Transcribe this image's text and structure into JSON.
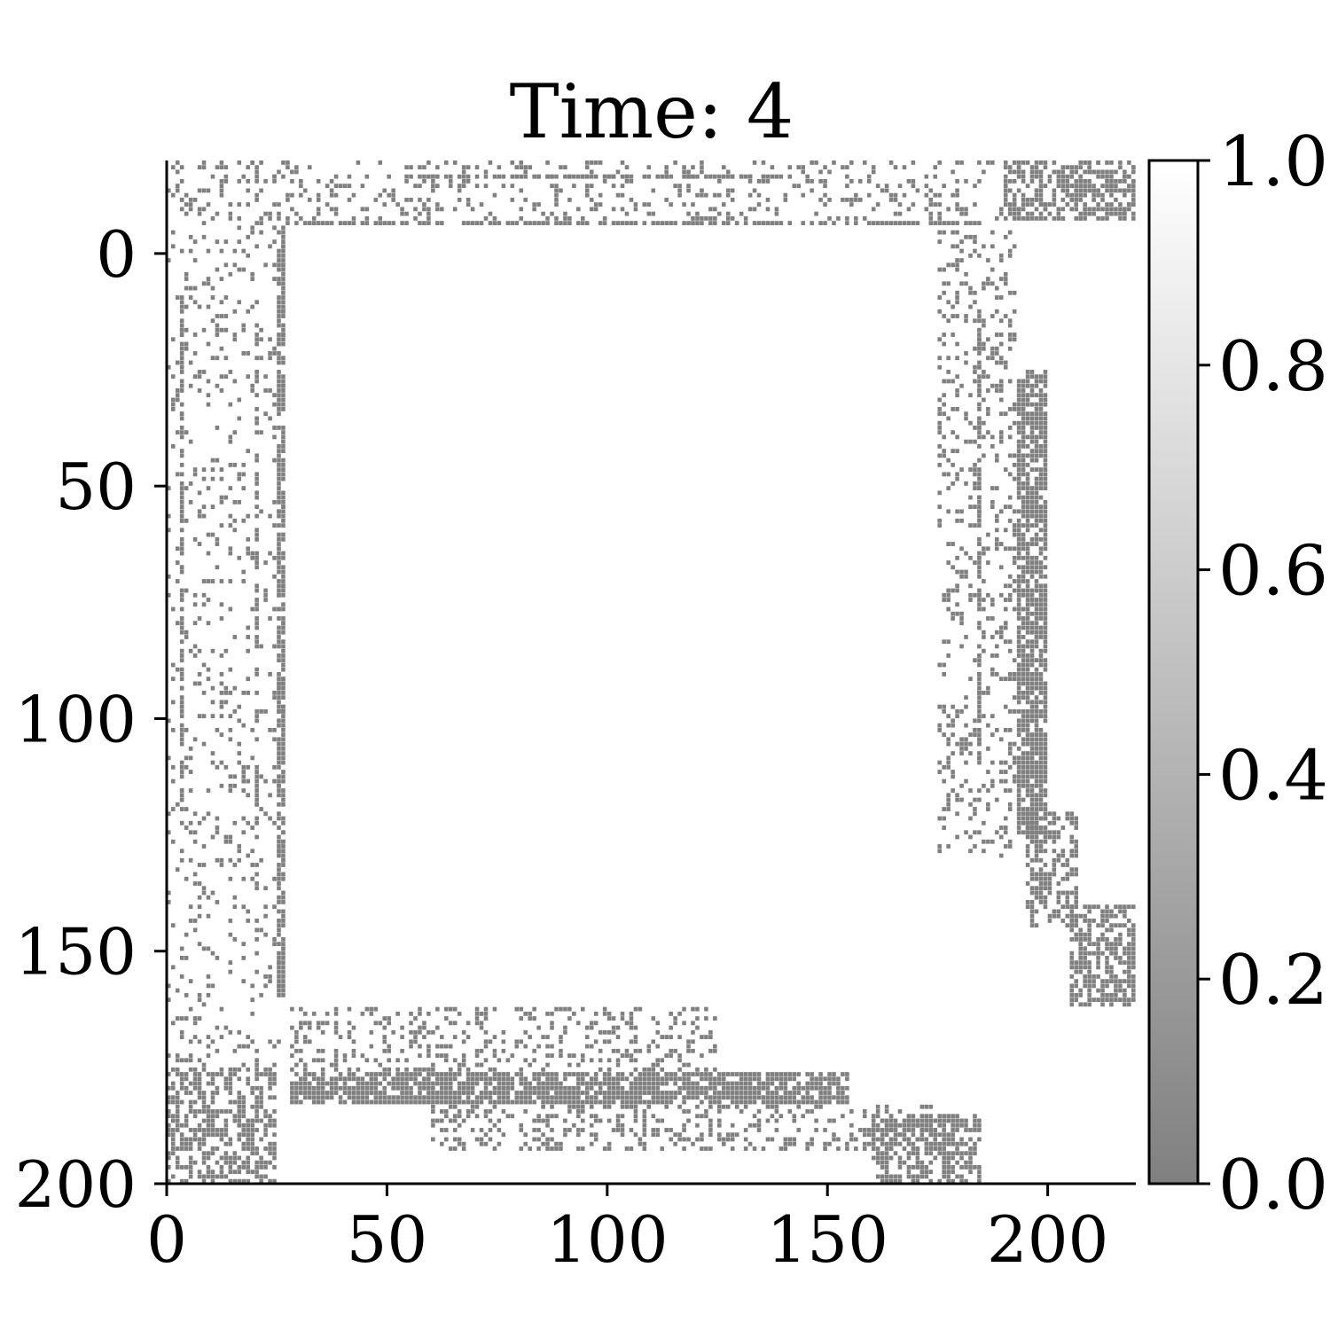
{
  "chart_data": {
    "type": "heatmap",
    "title": "Time: 4",
    "xlabel": "",
    "ylabel": "",
    "xlim": [
      0,
      220
    ],
    "ylim": [
      200,
      -20
    ],
    "y_axis_inverted": true,
    "x_ticks": [
      0,
      50,
      100,
      150,
      200
    ],
    "x_tick_labels": [
      "0",
      "50",
      "100",
      "150",
      "200"
    ],
    "y_ticks": [
      0,
      50,
      100,
      150,
      200
    ],
    "y_tick_labels": [
      "0",
      "50",
      "100",
      "150",
      "200"
    ],
    "grid": false,
    "colormap": {
      "low_color": "#808080",
      "high_color": "#ffffff",
      "background_value": 1.0,
      "feature_value": 0.0
    },
    "colorbar": {
      "range": [
        0.0,
        1.0
      ],
      "ticks": [
        0.0,
        0.2,
        0.4,
        0.6,
        0.8,
        1.0
      ],
      "tick_labels": [
        "0.0",
        "0.2",
        "0.4",
        "0.6",
        "0.8",
        "1.0"
      ]
    },
    "regions": [
      {
        "name": "top-edge-band",
        "x": [
          0,
          220
        ],
        "y": [
          -20,
          -7
        ],
        "density": 0.18,
        "value": 0.0
      },
      {
        "name": "top-inner-line",
        "x": [
          27,
          185
        ],
        "y": [
          -7,
          -6
        ],
        "density": 0.7,
        "value": 0.0
      },
      {
        "name": "top-upper-line",
        "x": [
          50,
          140
        ],
        "y": [
          -17,
          -16
        ],
        "density": 0.7,
        "value": 0.0
      },
      {
        "name": "left-edge-band",
        "x": [
          0,
          27
        ],
        "y": [
          -20,
          175
        ],
        "density": 0.12,
        "value": 0.0
      },
      {
        "name": "left-inner-line",
        "x": [
          25,
          27
        ],
        "y": [
          -5,
          160
        ],
        "density": 0.75,
        "value": 0.0
      },
      {
        "name": "left-line-4",
        "x": [
          3,
          4
        ],
        "y": [
          10,
          120
        ],
        "density": 0.7,
        "value": 0.0
      },
      {
        "name": "left-line-20",
        "x": [
          20,
          21
        ],
        "y": [
          10,
          155
        ],
        "density": 0.4,
        "value": 0.0
      },
      {
        "name": "bottom-left-corner",
        "x": [
          0,
          25
        ],
        "y": [
          175,
          200
        ],
        "density": 0.55,
        "value": 0.0
      },
      {
        "name": "bottom-band-upper",
        "x": [
          28,
          125
        ],
        "y": [
          162,
          176
        ],
        "density": 0.25,
        "value": 0.0
      },
      {
        "name": "bottom-band-dense",
        "x": [
          28,
          155
        ],
        "y": [
          176,
          183
        ],
        "density": 0.8,
        "value": 0.0
      },
      {
        "name": "bottom-band-lower",
        "x": [
          60,
          175
        ],
        "y": [
          183,
          193
        ],
        "density": 0.3,
        "value": 0.0
      },
      {
        "name": "bottom-right-cluster",
        "x": [
          160,
          185
        ],
        "y": [
          185,
          200
        ],
        "density": 0.6,
        "value": 0.0
      },
      {
        "name": "top-right-corner",
        "x": [
          190,
          220
        ],
        "y": [
          -20,
          -7
        ],
        "density": 0.55,
        "value": 0.0
      },
      {
        "name": "right-scatter-band",
        "x": [
          175,
          193
        ],
        "y": [
          -5,
          130
        ],
        "density": 0.2,
        "value": 0.0
      },
      {
        "name": "right-line-185",
        "x": [
          184,
          185
        ],
        "y": [
          10,
          110
        ],
        "density": 0.7,
        "value": 0.0
      },
      {
        "name": "right-dense-column",
        "x": [
          193,
          200
        ],
        "y": [
          25,
          125
        ],
        "density": 0.82,
        "value": 0.0
      },
      {
        "name": "right-lower-band",
        "x": [
          195,
          207
        ],
        "y": [
          120,
          145
        ],
        "density": 0.45,
        "value": 0.0
      },
      {
        "name": "right-bottom-cluster",
        "x": [
          205,
          220
        ],
        "y": [
          140,
          162
        ],
        "density": 0.6,
        "value": 0.0
      }
    ]
  }
}
